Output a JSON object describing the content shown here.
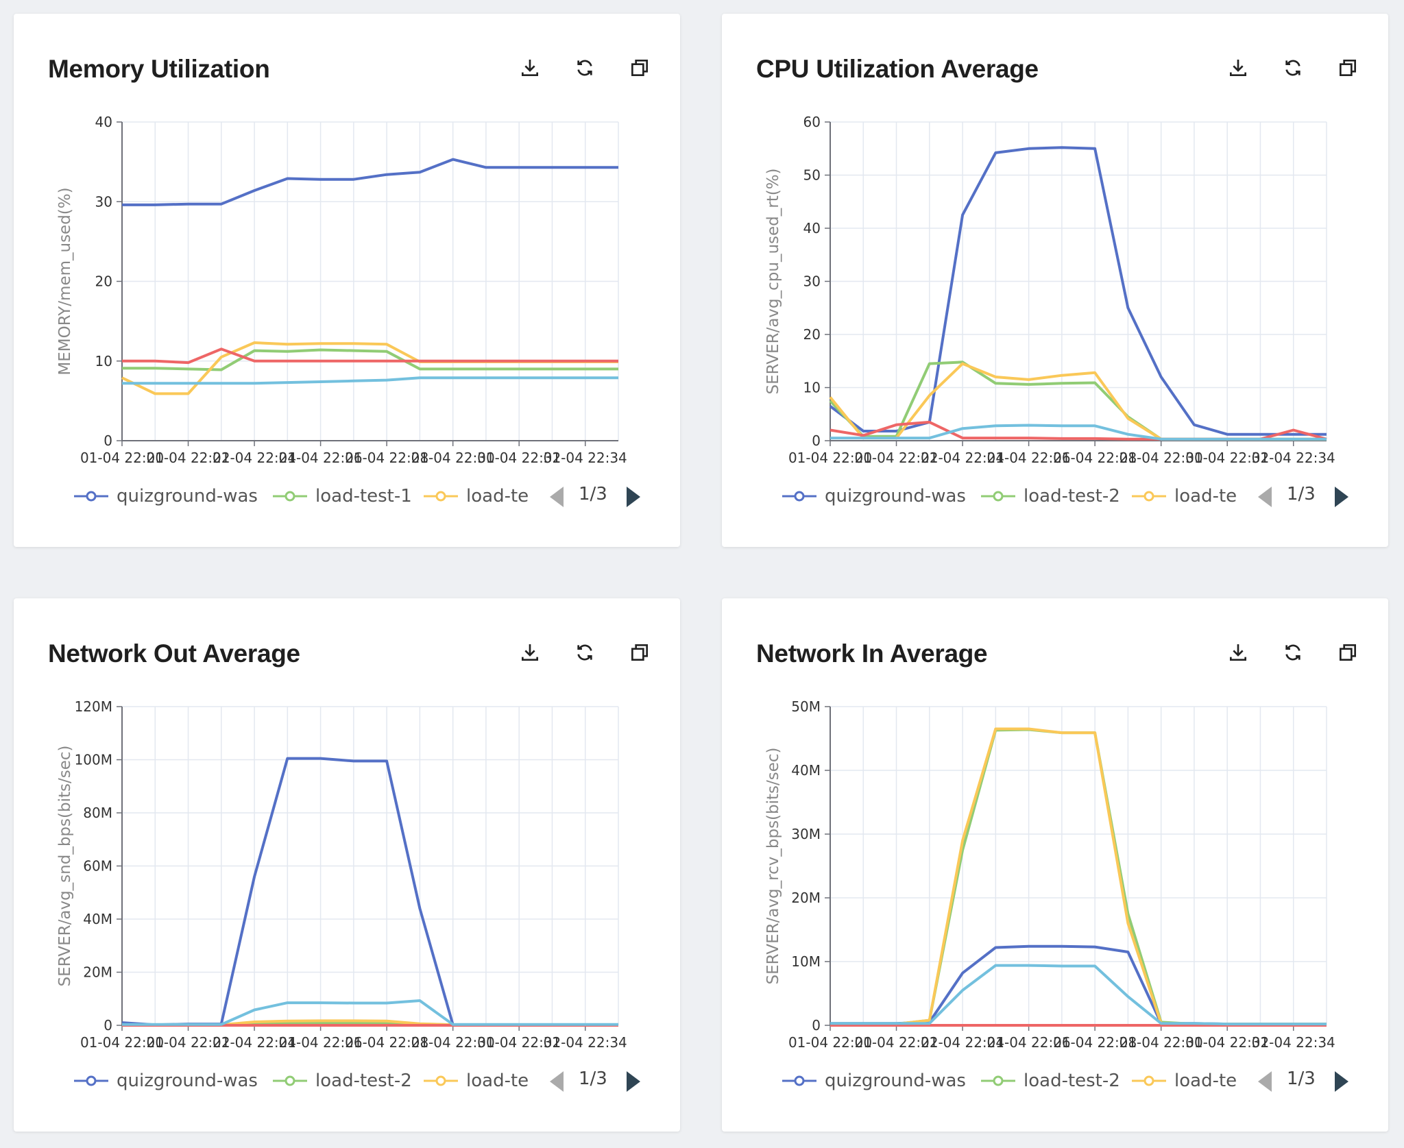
{
  "toolbar": {
    "download_icon": "download-icon",
    "refresh_icon": "refresh-icon",
    "expand_icon": "expand-window-icon"
  },
  "colors": {
    "quizground-was": "#5470c6",
    "load-test-1": "#91cc75",
    "load-test-2": "#91cc75",
    "load-te": "#fac858",
    "red-series": "#ee6666",
    "cyan-series": "#73c0de",
    "pager_active": "#2f4554",
    "pager_inactive": "#aaaaaa"
  },
  "cards": [
    {
      "title": "Memory Utilization",
      "legend": [
        "quizground-was",
        "load-test-1",
        "load-te"
      ],
      "pager": "1/3",
      "chart_data": {
        "type": "line",
        "ylabel": "MEMORY/mem_used(%)",
        "ylim": [
          0,
          40
        ],
        "y_ticks": [
          "0",
          "10",
          "20",
          "30",
          "40"
        ],
        "x_ticks": [
          "01-04 22:20",
          "01-04 22:22",
          "01-04 22:24",
          "01-04 22:26",
          "01-04 22:28",
          "01-04 22:30",
          "01-04 22:32",
          "01-04 22:34"
        ],
        "x_visible_ticks": [
          "01-04 22:20",
          "01-04 22:22",
          "01-04 22:24",
          "01-04 22:26",
          "01-04 22:28",
          "01-04 22:30",
          "01-04 22:32",
          "01-04 22:34"
        ],
        "x": [
          0,
          1,
          2,
          3,
          4,
          5,
          6,
          7,
          8,
          9,
          10,
          11,
          12,
          13,
          14,
          15
        ],
        "xlim": [
          0,
          15
        ],
        "series": [
          {
            "name": "quizground-was",
            "color": "#5470c6",
            "values": [
              29.6,
              29.6,
              29.7,
              29.7,
              31.4,
              32.9,
              32.8,
              32.8,
              33.4,
              33.7,
              35.3,
              34.3,
              34.3,
              34.3,
              34.3,
              34.3
            ]
          },
          {
            "name": "load-test-1",
            "color": "#91cc75",
            "values": [
              9.1,
              9.1,
              9.0,
              8.9,
              11.3,
              11.2,
              11.4,
              11.3,
              11.2,
              9.0,
              9.0,
              9.0,
              9.0,
              9.0,
              9.0,
              9.0
            ]
          },
          {
            "name": "load-te",
            "color": "#fac858",
            "values": [
              7.9,
              5.9,
              5.9,
              10.5,
              12.3,
              12.1,
              12.2,
              12.2,
              12.1,
              9.9,
              9.9,
              9.9,
              9.9,
              9.9,
              9.9,
              9.9
            ]
          },
          {
            "color": "#ee6666",
            "values": [
              10.0,
              10.0,
              9.8,
              11.5,
              10.0,
              10.0,
              10.0,
              10.0,
              10.0,
              10.0,
              10.0,
              10.0,
              10.0,
              10.0,
              10.0,
              10.0
            ]
          },
          {
            "color": "#73c0de",
            "values": [
              7.2,
              7.2,
              7.2,
              7.2,
              7.2,
              7.3,
              7.4,
              7.5,
              7.6,
              7.9,
              7.9,
              7.9,
              7.9,
              7.9,
              7.9,
              7.9
            ]
          }
        ]
      }
    },
    {
      "title": "CPU Utilization Average",
      "legend": [
        "quizground-was",
        "load-test-2",
        "load-te"
      ],
      "pager": "1/3",
      "chart_data": {
        "type": "line",
        "ylabel": "SERVER/avg_cpu_used_rt(%)",
        "ylim": [
          0,
          60
        ],
        "y_ticks": [
          "0",
          "10",
          "20",
          "30",
          "40",
          "50",
          "60"
        ],
        "x_ticks": [
          "01-04 22:20",
          "01-04 22:22",
          "01-04 22:24",
          "01-04 22:26",
          "01-04 22:28",
          "01-04 22:30",
          "01-04 22:32",
          "01-04 22:34"
        ],
        "x_visible_ticks": [
          "01-04 22:20",
          "01-04 22:22",
          "01-04 22:24",
          "01-04 22:26",
          "01-04 22:28",
          "01-04 22:30",
          "01-04 22:32",
          "01-04 22:34"
        ],
        "x": [
          0,
          1,
          2,
          3,
          4,
          5,
          6,
          7,
          8,
          9,
          10,
          11,
          12,
          13,
          14,
          15
        ],
        "xlim": [
          0,
          15
        ],
        "series": [
          {
            "name": "quizground-was",
            "color": "#5470c6",
            "values": [
              6.5,
              1.8,
              1.8,
              3.5,
              42.5,
              54.2,
              55.0,
              55.2,
              55.0,
              25.0,
              12.0,
              3.0,
              1.2,
              1.2,
              1.2,
              1.2
            ]
          },
          {
            "name": "load-test-2",
            "color": "#91cc75",
            "values": [
              7.5,
              0.8,
              0.8,
              14.5,
              14.8,
              10.8,
              10.6,
              10.8,
              10.9,
              4.5,
              0.3,
              0.3,
              0.3,
              0.3,
              0.3,
              0.3
            ]
          },
          {
            "name": "load-te",
            "color": "#fac858",
            "values": [
              8.2,
              0.5,
              0.5,
              8.5,
              14.5,
              12.0,
              11.5,
              12.3,
              12.8,
              4.2,
              0.3,
              0.3,
              0.3,
              0.3,
              0.3,
              0.3
            ]
          },
          {
            "color": "#ee6666",
            "values": [
              2.0,
              1.0,
              3.0,
              3.5,
              0.5,
              0.5,
              0.5,
              0.4,
              0.4,
              0.3,
              0.3,
              0.3,
              0.3,
              0.3,
              2.0,
              0.3
            ]
          },
          {
            "color": "#73c0de",
            "values": [
              0.5,
              0.5,
              0.5,
              0.5,
              2.3,
              2.8,
              2.9,
              2.8,
              2.8,
              1.2,
              0.3,
              0.3,
              0.3,
              0.3,
              0.3,
              0.3
            ]
          }
        ]
      }
    },
    {
      "title": "Network Out Average",
      "legend": [
        "quizground-was",
        "load-test-2",
        "load-te"
      ],
      "pager": "1/3",
      "chart_data": {
        "type": "line",
        "ylabel": "SERVER/avg_snd_bps(bits/sec)",
        "ylim": [
          0,
          120
        ],
        "y_ticks": [
          "0",
          "20M",
          "40M",
          "60M",
          "80M",
          "100M",
          "120M"
        ],
        "x_ticks": [
          "01-04 22:20",
          "01-04 22:22",
          "01-04 22:24",
          "01-04 22:26",
          "01-04 22:28",
          "01-04 22:30",
          "01-04 22:32",
          "01-04 22:34"
        ],
        "x_visible_ticks": [
          "01-04 22:20",
          "01-04 22:22",
          "01-04 22:24",
          "01-04 22:26",
          "01-04 22:28",
          "01-04 22:30",
          "01-04 22:32",
          "01-04 22:34"
        ],
        "x": [
          0,
          1,
          2,
          3,
          4,
          5,
          6,
          7,
          8,
          9,
          10,
          11,
          12,
          13,
          14,
          15
        ],
        "xlim": [
          0,
          15
        ],
        "series": [
          {
            "name": "quizground-was",
            "color": "#5470c6",
            "values": [
              1.0,
              0.2,
              0.5,
              0.5,
              56.0,
              100.5,
              100.5,
              99.5,
              99.5,
              44.0,
              0.2,
              0.2,
              0.2,
              0.2,
              0.2,
              0.2
            ]
          },
          {
            "name": "load-test-2",
            "color": "#91cc75",
            "values": [
              0.2,
              0.2,
              0.2,
              0.2,
              0.8,
              1.0,
              1.0,
              1.0,
              1.0,
              0.5,
              0.2,
              0.2,
              0.2,
              0.2,
              0.2,
              0.2
            ]
          },
          {
            "name": "load-te",
            "color": "#fac858",
            "values": [
              0.2,
              0.2,
              0.2,
              0.2,
              1.3,
              1.6,
              1.7,
              1.7,
              1.6,
              0.6,
              0.2,
              0.2,
              0.2,
              0.2,
              0.2,
              0.2
            ]
          },
          {
            "color": "#ee6666",
            "values": [
              0.0,
              0.0,
              0.0,
              0.0,
              0.0,
              0.0,
              0.0,
              0.0,
              0.0,
              0.0,
              0.0,
              0.0,
              0.0,
              0.0,
              0.0,
              0.0
            ]
          },
          {
            "color": "#73c0de",
            "values": [
              0.3,
              0.3,
              0.3,
              0.3,
              5.8,
              8.5,
              8.5,
              8.4,
              8.4,
              9.3,
              0.3,
              0.3,
              0.3,
              0.3,
              0.3,
              0.3
            ]
          }
        ]
      }
    },
    {
      "title": "Network In Average",
      "legend": [
        "quizground-was",
        "load-test-2",
        "load-te"
      ],
      "pager": "1/3",
      "chart_data": {
        "type": "line",
        "ylabel": "SERVER/avg_rcv_bps(bits/sec)",
        "ylim": [
          0,
          50
        ],
        "y_ticks": [
          "0",
          "10M",
          "20M",
          "30M",
          "40M",
          "50M"
        ],
        "x_ticks": [
          "01-04 22:20",
          "01-04 22:22",
          "01-04 22:24",
          "01-04 22:26",
          "01-04 22:28",
          "01-04 22:30",
          "01-04 22:32",
          "01-04 22:34"
        ],
        "x_visible_ticks": [
          "01-04 22:20",
          "01-04 22:22",
          "01-04 22:24",
          "01-04 22:26",
          "01-04 22:28",
          "01-04 22:30",
          "01-04 22:32",
          "01-04 22:34"
        ],
        "x": [
          0,
          1,
          2,
          3,
          4,
          5,
          6,
          7,
          8,
          9,
          10,
          11,
          12,
          13,
          14,
          15
        ],
        "xlim": [
          0,
          15
        ],
        "series": [
          {
            "name": "quizground-was",
            "color": "#5470c6",
            "values": [
              0.3,
              0.3,
              0.3,
              0.5,
              8.2,
              12.2,
              12.4,
              12.4,
              12.3,
              11.5,
              0.3,
              0.3,
              0.2,
              0.2,
              0.2,
              0.2
            ]
          },
          {
            "name": "load-test-2",
            "color": "#91cc75",
            "values": [
              0.2,
              0.2,
              0.2,
              0.8,
              27.5,
              46.3,
              46.4,
              45.9,
              45.9,
              17.5,
              0.5,
              0.2,
              0.2,
              0.2,
              0.2,
              0.2
            ]
          },
          {
            "name": "load-te",
            "color": "#fac858",
            "values": [
              0.2,
              0.2,
              0.2,
              0.8,
              29.0,
              46.5,
              46.5,
              45.9,
              45.9,
              16.0,
              0.3,
              0.2,
              0.2,
              0.2,
              0.2,
              0.2
            ]
          },
          {
            "color": "#ee6666",
            "values": [
              0.0,
              0.0,
              0.0,
              0.0,
              0.0,
              0.0,
              0.0,
              0.0,
              0.0,
              0.0,
              0.0,
              0.0,
              0.0,
              0.0,
              0.0,
              0.0
            ]
          },
          {
            "color": "#73c0de",
            "values": [
              0.3,
              0.3,
              0.3,
              0.3,
              5.5,
              9.4,
              9.4,
              9.3,
              9.3,
              4.5,
              0.3,
              0.3,
              0.2,
              0.2,
              0.2,
              0.2
            ]
          }
        ]
      }
    }
  ]
}
